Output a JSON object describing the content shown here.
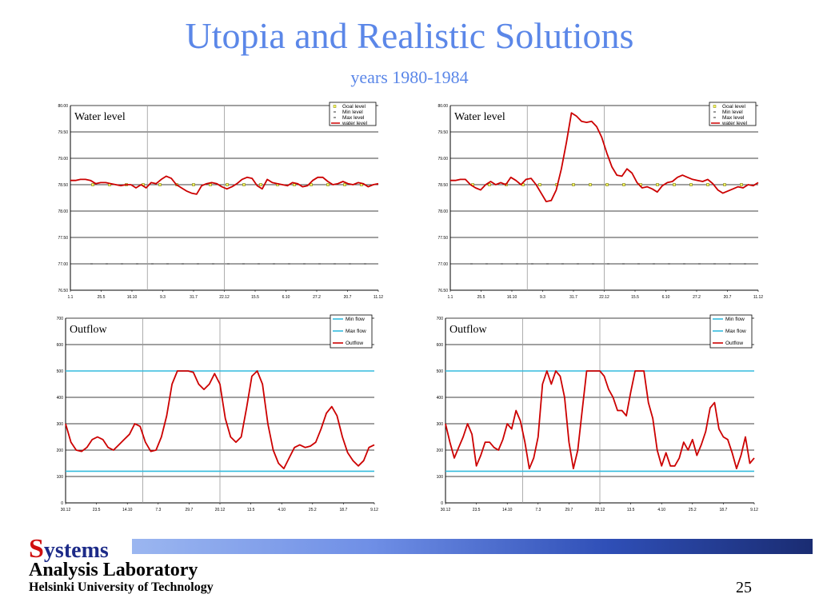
{
  "slide": {
    "title": "Utopia and Realistic Solutions",
    "subtitle": "years 1980-1984",
    "logo_s": "S",
    "logo_rest": "ystems",
    "lab_line1": "Analysis Laboratory",
    "lab_line2": "Helsinki University of Technology",
    "page_number": "25"
  },
  "chart_data": [
    {
      "type": "line",
      "title": "Water level",
      "ylim": [
        76.5,
        80.0
      ],
      "y_ticks": [
        "76.50",
        "77.00",
        "77.50",
        "78.00",
        "78.50",
        "79.00",
        "79.50",
        "80.00"
      ],
      "x_ticks": [
        "1.1",
        "25.5",
        "16.10",
        "9.3",
        "31.7",
        "22.12",
        "15.5",
        "6.10",
        "27.2",
        "20.7",
        "11.12"
      ],
      "grid": true,
      "legend_position": "top-right",
      "legend": [
        "Goal level",
        "Min  level",
        "Max  level",
        "water level"
      ],
      "goal_level": 78.5,
      "min_level": 77.0,
      "max_level": 80.0,
      "series": [
        {
          "name": "water level",
          "color": "#cc0000",
          "values": [
            78.58,
            78.58,
            78.6,
            78.6,
            78.58,
            78.52,
            78.54,
            78.54,
            78.52,
            78.5,
            78.48,
            78.5,
            78.5,
            78.44,
            78.5,
            78.44,
            78.54,
            78.52,
            78.6,
            78.66,
            78.62,
            78.5,
            78.44,
            78.38,
            78.34,
            78.32,
            78.48,
            78.52,
            78.54,
            78.52,
            78.46,
            78.42,
            78.46,
            78.52,
            78.6,
            78.64,
            78.62,
            78.48,
            78.42,
            78.6,
            78.54,
            78.52,
            78.5,
            78.48,
            78.54,
            78.52,
            78.46,
            78.48,
            78.58,
            78.64,
            78.64,
            78.56,
            78.5,
            78.52,
            78.56,
            78.52,
            78.5,
            78.54,
            78.52,
            78.46,
            78.5,
            78.52
          ]
        }
      ]
    },
    {
      "type": "line",
      "title": "Water level",
      "ylim": [
        76.5,
        80.0
      ],
      "y_ticks": [
        "76.50",
        "77.00",
        "77.50",
        "78.00",
        "78.50",
        "79.00",
        "79.50",
        "80.00"
      ],
      "x_ticks": [
        "1.1",
        "25.5",
        "16.10",
        "9.3",
        "31.7",
        "22.12",
        "15.5",
        "6.10",
        "27.2",
        "20.7",
        "11.12"
      ],
      "grid": true,
      "legend_position": "top-right",
      "legend": [
        "Goal level",
        "Min  level",
        "Max  level",
        "water level"
      ],
      "goal_level": 78.5,
      "min_level": 77.0,
      "max_level": 80.0,
      "series": [
        {
          "name": "water level",
          "color": "#cc0000",
          "values": [
            78.58,
            78.58,
            78.6,
            78.6,
            78.5,
            78.44,
            78.4,
            78.5,
            78.56,
            78.5,
            78.54,
            78.5,
            78.64,
            78.58,
            78.5,
            78.6,
            78.62,
            78.5,
            78.34,
            78.18,
            78.2,
            78.4,
            78.8,
            79.3,
            79.86,
            79.8,
            79.7,
            79.68,
            79.7,
            79.6,
            79.4,
            79.1,
            78.84,
            78.68,
            78.66,
            78.8,
            78.72,
            78.54,
            78.44,
            78.46,
            78.42,
            78.36,
            78.48,
            78.54,
            78.56,
            78.64,
            78.68,
            78.64,
            78.6,
            78.58,
            78.56,
            78.6,
            78.52,
            78.4,
            78.34,
            78.38,
            78.42,
            78.46,
            78.44,
            78.5,
            78.48,
            78.54
          ]
        }
      ]
    },
    {
      "type": "line",
      "title": "Outflow",
      "ylim": [
        0,
        700
      ],
      "y_ticks": [
        "0",
        "100",
        "200",
        "300",
        "400",
        "500",
        "600",
        "700"
      ],
      "x_ticks": [
        "30.12",
        "23.5",
        "14.10",
        "7.3",
        "29.7",
        "20.12",
        "13.5",
        "4.10",
        "25.2",
        "18.7",
        "9.12"
      ],
      "grid": true,
      "legend_position": "top-right",
      "legend": [
        "Min flow",
        "Max flow",
        "Outflow"
      ],
      "min_flow": 120,
      "max_flow": 500,
      "series": [
        {
          "name": "Outflow",
          "color": "#cc0000",
          "values": [
            300,
            230,
            200,
            195,
            210,
            240,
            250,
            240,
            210,
            200,
            220,
            240,
            260,
            300,
            290,
            230,
            195,
            200,
            250,
            330,
            450,
            500,
            500,
            500,
            495,
            450,
            430,
            450,
            490,
            450,
            320,
            250,
            230,
            250,
            360,
            480,
            500,
            450,
            300,
            200,
            150,
            130,
            170,
            210,
            220,
            210,
            215,
            230,
            280,
            340,
            365,
            330,
            250,
            190,
            160,
            140,
            160,
            210,
            220
          ]
        }
      ]
    },
    {
      "type": "line",
      "title": "Outflow",
      "ylim": [
        0,
        700
      ],
      "y_ticks": [
        "0",
        "100",
        "200",
        "300",
        "400",
        "500",
        "600",
        "700"
      ],
      "x_ticks": [
        "30.12",
        "23.5",
        "14.10",
        "7.3",
        "29.7",
        "20.12",
        "13.5",
        "4.10",
        "25.2",
        "18.7",
        "9.12"
      ],
      "grid": true,
      "legend_position": "top-right",
      "legend": [
        "Min flow",
        "Max flow",
        "Outflow"
      ],
      "min_flow": 120,
      "max_flow": 500,
      "series": [
        {
          "name": "Outflow",
          "color": "#cc0000",
          "values": [
            300,
            230,
            170,
            210,
            250,
            300,
            260,
            140,
            180,
            230,
            230,
            210,
            200,
            240,
            300,
            280,
            350,
            310,
            230,
            130,
            170,
            250,
            450,
            500,
            450,
            500,
            480,
            400,
            230,
            130,
            200,
            350,
            500,
            500,
            500,
            500,
            480,
            430,
            400,
            350,
            350,
            330,
            420,
            500,
            500,
            500,
            380,
            320,
            200,
            140,
            190,
            140,
            140,
            170,
            230,
            200,
            240,
            180,
            220,
            270,
            360,
            380,
            280,
            250,
            240,
            190,
            130,
            180,
            250,
            150,
            170
          ]
        }
      ]
    }
  ]
}
